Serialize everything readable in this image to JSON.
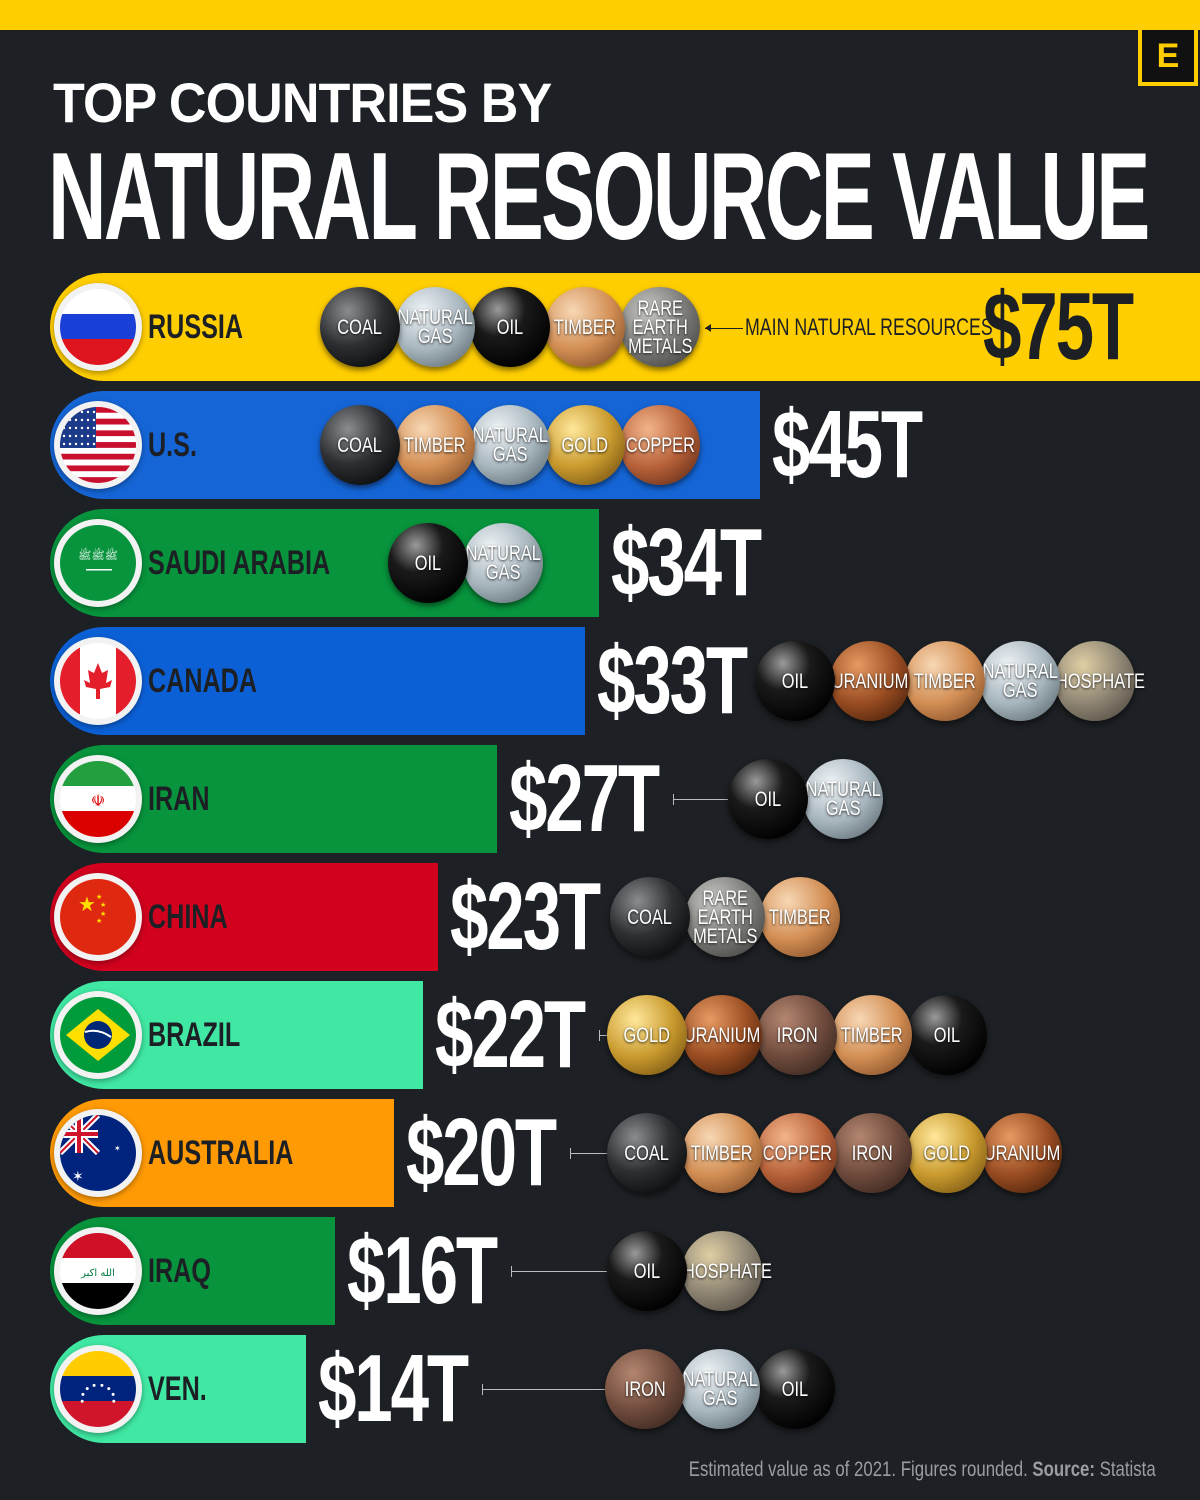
{
  "brand": {
    "logo_letter": "E",
    "accent": "#FFCE00",
    "background": "#1d2024"
  },
  "title": {
    "line1": "TOP COUNTRIES BY",
    "line2": "NATURAL RESOURCE VALUE"
  },
  "annotation": "MAIN NATURAL RESOURCES",
  "footer": {
    "note": "Estimated value as of 2021. Figures rounded.",
    "source_label": "Source:",
    "source": "Statista"
  },
  "chart_data": {
    "type": "bar",
    "orientation": "horizontal",
    "unit": "trillion USD",
    "title": "TOP COUNTRIES BY NATURAL RESOURCE VALUE",
    "categories": [
      "RUSSIA",
      "U.S.",
      "SAUDI ARABIA",
      "CANADA",
      "IRAN",
      "CHINA",
      "BRAZIL",
      "AUSTRALIA",
      "IRAQ",
      "VEN."
    ],
    "values": [
      75,
      45,
      34,
      33,
      27,
      23,
      22,
      20,
      16,
      14
    ],
    "value_labels": [
      "$75T",
      "$45T",
      "$34T",
      "$33T",
      "$27T",
      "$23T",
      "$22T",
      "$20T",
      "$16T",
      "$14T"
    ],
    "colors": [
      "#FFCE00",
      "#1565D6",
      "#07943C",
      "#0C60D6",
      "#07943C",
      "#D2021E",
      "#40E8A3",
      "#FF9A05",
      "#07943C",
      "#40E8A3"
    ],
    "flags": [
      "russia",
      "us",
      "saudi",
      "canada",
      "iran",
      "china",
      "brazil",
      "australia",
      "iraq",
      "venezuela"
    ],
    "resources": [
      [
        "COAL",
        "NATURAL\nGAS",
        "OIL",
        "TIMBER",
        "RARE\nEARTH\nMETALS"
      ],
      [
        "COAL",
        "TIMBER",
        "NATURAL\nGAS",
        "GOLD",
        "COPPER"
      ],
      [
        "OIL",
        "NATURAL\nGAS"
      ],
      [
        "OIL",
        "URANIUM",
        "TIMBER",
        "NATURAL\nGAS",
        "PHOSPHATE"
      ],
      [
        "OIL",
        "NATURAL\nGAS"
      ],
      [
        "COAL",
        "RARE\nEARTH\nMETALS",
        "TIMBER"
      ],
      [
        "GOLD",
        "URANIUM",
        "IRON",
        "TIMBER",
        "OIL"
      ],
      [
        "COAL",
        "TIMBER",
        "COPPER",
        "IRON",
        "GOLD",
        "URANIUM"
      ],
      [
        "OIL",
        "PHOSPHATE"
      ],
      [
        "IRON",
        "NATURAL\nGAS",
        "OIL"
      ]
    ]
  }
}
